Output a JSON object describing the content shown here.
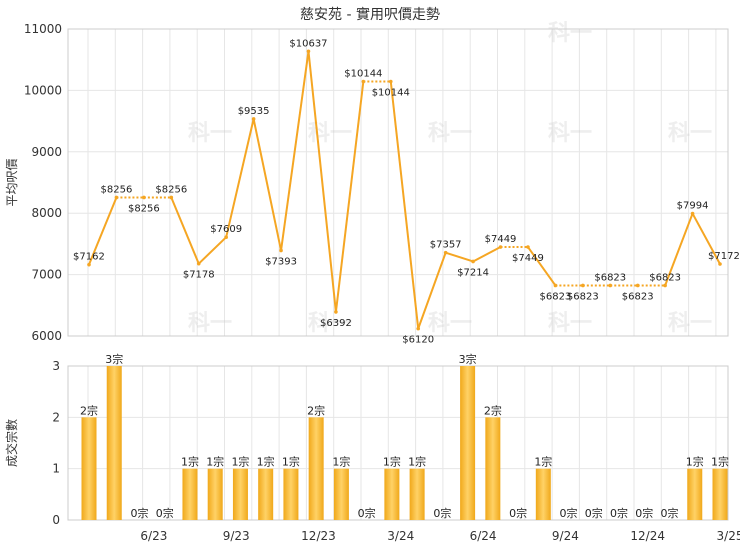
{
  "chart_data": [
    {
      "type": "line",
      "title": "慈安苑 - 實用呎價走勢",
      "ylabel": "平均呎價",
      "ylim": [
        6000,
        11000
      ],
      "yticks": [
        6000,
        7000,
        8000,
        9000,
        10000,
        11000
      ],
      "x": [
        0,
        1,
        2,
        3,
        4,
        5,
        6,
        7,
        8,
        9,
        10,
        11,
        12,
        13,
        14,
        15,
        16,
        17,
        18,
        19,
        20,
        21,
        22,
        23
      ],
      "values": [
        7162,
        8256,
        8256,
        8256,
        7178,
        7609,
        9535,
        7393,
        10637,
        6392,
        10144,
        10144,
        6120,
        7357,
        7214,
        7449,
        7449,
        6823,
        6823,
        6823,
        6823,
        6823,
        7994,
        7172
      ],
      "labels": [
        "$7162",
        "$8256",
        "$8256",
        "$8256",
        "$7178",
        "$7609",
        "$9535",
        "$7393",
        "$10637",
        "$6392",
        "$10144",
        "$10144",
        "$6120",
        "$7357",
        "$7214",
        "$7449",
        "$7449",
        "$6823",
        "$6823",
        "$6823",
        "$6823",
        "$6823",
        "$7994",
        "$7172"
      ],
      "dotted_segments": [
        [
          1,
          2
        ],
        [
          2,
          3
        ],
        [
          10,
          11
        ],
        [
          15,
          16
        ],
        [
          17,
          18
        ],
        [
          18,
          19
        ],
        [
          19,
          20
        ],
        [
          20,
          21
        ]
      ],
      "line_color": "#f5a623",
      "grid": true
    },
    {
      "type": "bar",
      "ylabel": "成交宗數",
      "ylim": [
        0,
        3
      ],
      "yticks": [
        0,
        1,
        2,
        3
      ],
      "values": [
        2,
        3,
        0,
        0,
        1,
        1,
        1,
        1,
        1,
        2,
        1,
        0,
        1,
        1,
        0,
        3,
        2,
        0,
        1,
        0,
        0,
        0,
        0,
        0,
        1,
        1
      ],
      "labels": [
        "2宗",
        "3宗",
        "0宗",
        "0宗",
        "1宗",
        "1宗",
        "1宗",
        "1宗",
        "1宗",
        "2宗",
        "1宗",
        "0宗",
        "1宗",
        "1宗",
        "0宗",
        "3宗",
        "2宗",
        "0宗",
        "1宗",
        "0宗",
        "0宗",
        "0宗",
        "0宗",
        "0宗",
        "1宗",
        "1宗"
      ],
      "x_tick_labels": [
        "6/23",
        "9/23",
        "12/23",
        "3/24",
        "6/24",
        "9/24",
        "12/24",
        "3/25"
      ],
      "x_tick_positions": [
        2,
        5,
        8,
        11,
        14,
        17,
        20,
        23
      ],
      "bar_color": "#f5a623",
      "grid": true
    }
  ],
  "watermark": "科一"
}
